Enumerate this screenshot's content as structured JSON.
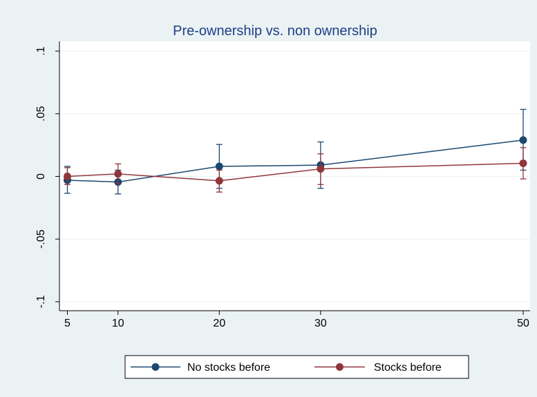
{
  "chart_data": {
    "type": "line",
    "title": "Pre-ownership vs. non ownership",
    "xlabel": "",
    "ylabel": "",
    "x": [
      5,
      10,
      20,
      30,
      50
    ],
    "x_ticks": [
      5,
      10,
      20,
      30,
      50
    ],
    "x_tick_labels": [
      "5",
      "10",
      "20",
      "30",
      "50"
    ],
    "xlim": [
      4,
      51
    ],
    "y_ticks": [
      -0.1,
      -0.05,
      0,
      0.05,
      0.1
    ],
    "y_tick_labels": [
      "-.1",
      "-.05",
      "0",
      ".05",
      ".1"
    ],
    "ylim": [
      -0.1,
      0.1
    ],
    "grid": true,
    "legend_position": "bottom",
    "series": [
      {
        "name": "No stocks before",
        "color": "#1a476f",
        "values": [
          -0.003,
          -0.0045,
          0.008,
          0.009,
          0.029
        ],
        "ci_low": [
          -0.0135,
          -0.014,
          -0.0095,
          -0.0095,
          0.005
        ],
        "ci_high": [
          0.008,
          0.005,
          0.0255,
          0.0275,
          0.0535
        ]
      },
      {
        "name": "Stocks before",
        "color": "#90353b",
        "values": [
          0.0,
          0.002,
          -0.0035,
          0.006,
          0.0105
        ],
        "ci_low": [
          -0.0065,
          -0.006,
          -0.0125,
          -0.0065,
          -0.002
        ],
        "ci_high": [
          0.007,
          0.01,
          0.005,
          0.018,
          0.023
        ]
      }
    ]
  }
}
